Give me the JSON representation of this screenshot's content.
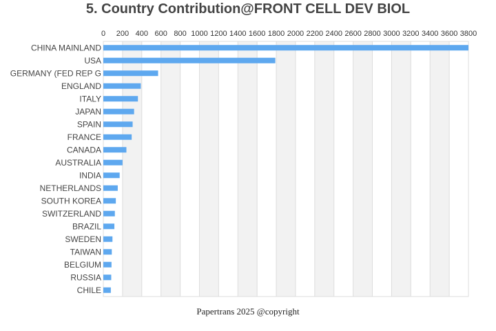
{
  "chart_data": {
    "type": "bar",
    "orientation": "horizontal",
    "title": "5. Country Contribution@FRONT CELL DEV BIOL",
    "xlabel": "",
    "ylabel": "",
    "xlim": [
      0,
      3800
    ],
    "x_ticks": [
      0,
      200,
      400,
      600,
      800,
      1000,
      1200,
      1400,
      1600,
      1800,
      2000,
      2200,
      2400,
      2600,
      2800,
      3000,
      3200,
      3400,
      3600,
      3800
    ],
    "axis_position": "top",
    "alternating_bands": true,
    "categories": [
      "CHINA MAINLAND",
      "USA",
      "GERMANY (FED REP G",
      "ENGLAND",
      "ITALY",
      "JAPAN",
      "SPAIN",
      "FRANCE",
      "CANADA",
      "AUSTRALIA",
      "INDIA",
      "NETHERLANDS",
      "SOUTH KOREA",
      "SWITZERLAND",
      "BRAZIL",
      "SWEDEN",
      "TAIWAN",
      "BELGIUM",
      "RUSSIA",
      "CHILE"
    ],
    "values": [
      3800,
      1790,
      570,
      390,
      360,
      320,
      305,
      295,
      240,
      200,
      170,
      150,
      130,
      120,
      115,
      95,
      88,
      85,
      82,
      78
    ],
    "bar_color": "#5ea8ef",
    "band_color": "#f2f2f2",
    "grid_color": "#dddddd"
  },
  "footer": "Papertrans 2025 @copyright"
}
